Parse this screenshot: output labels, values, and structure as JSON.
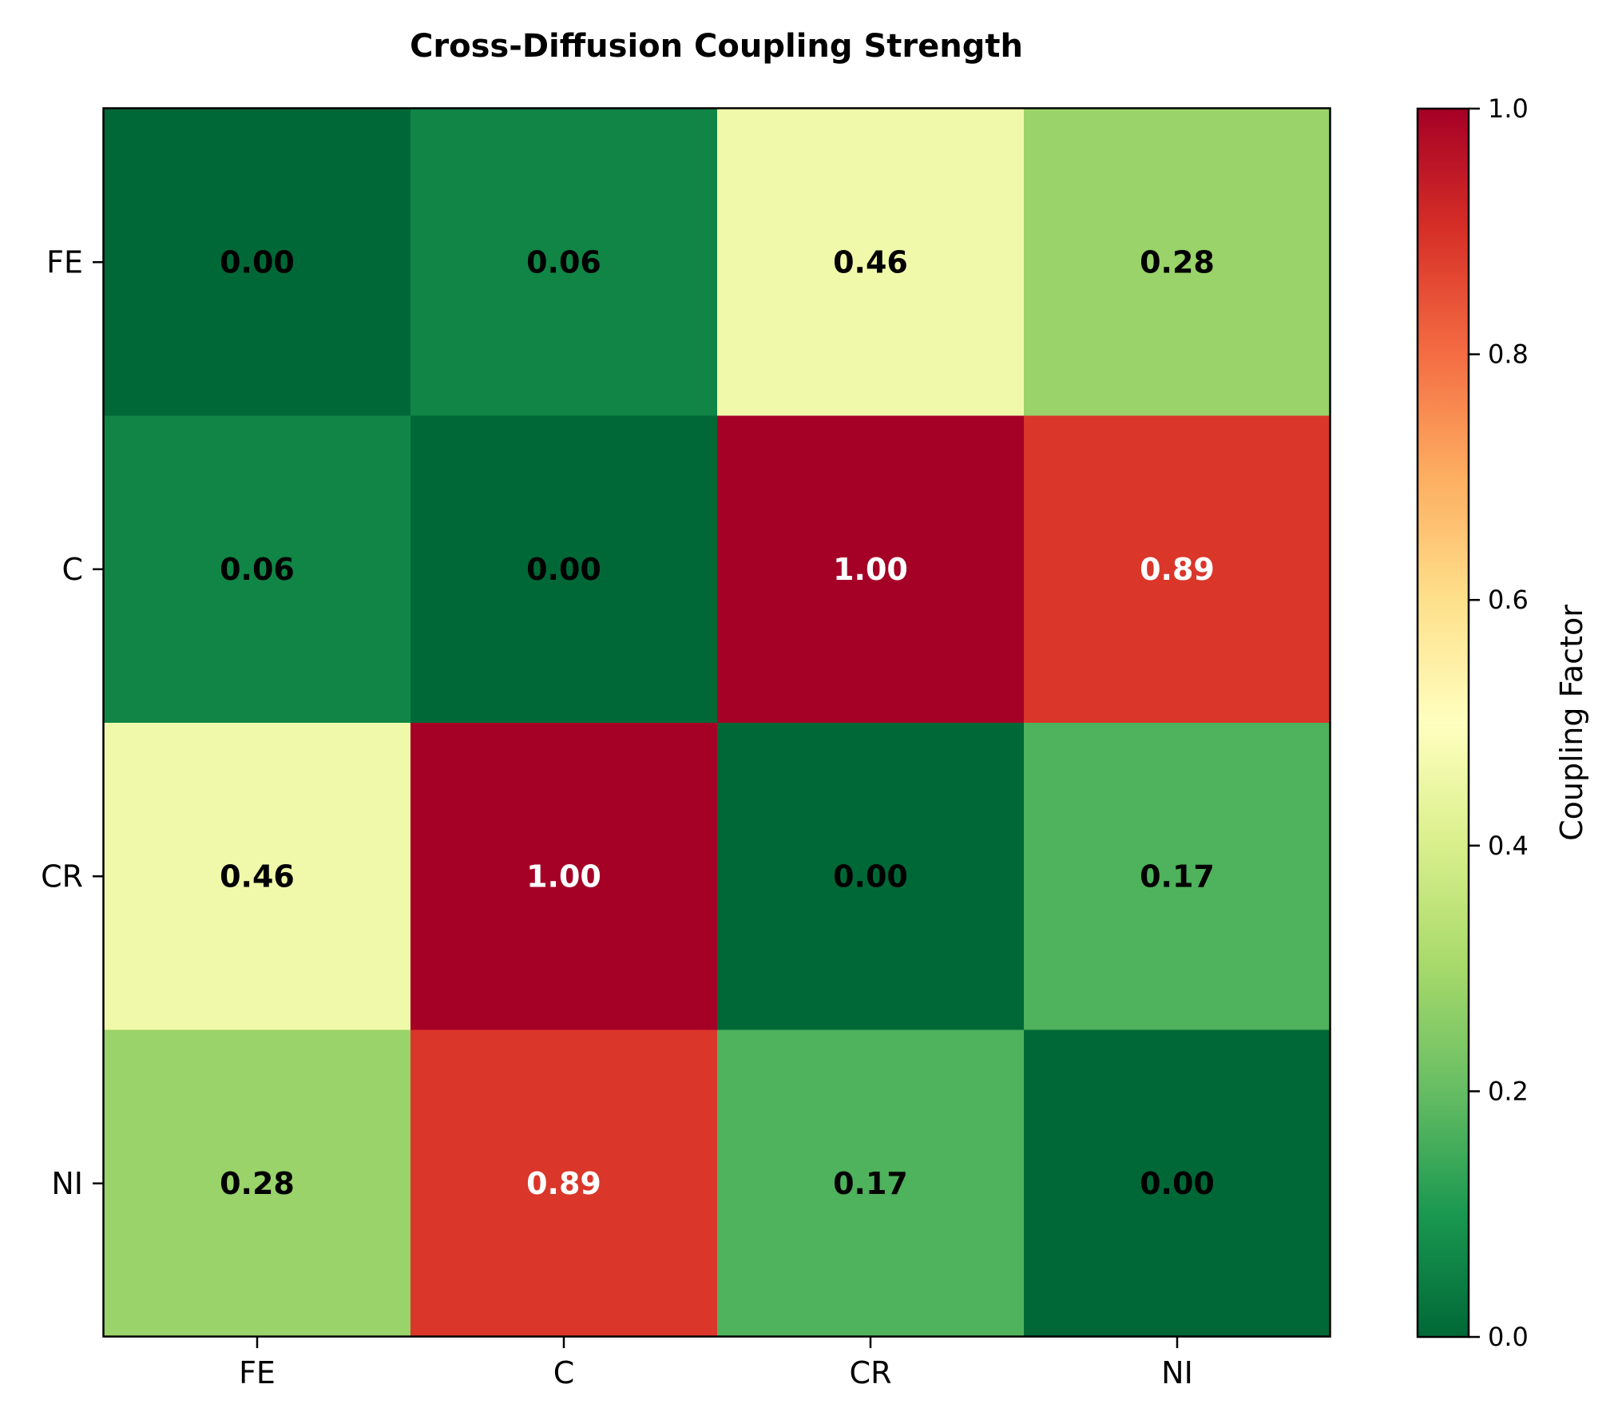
{
  "chart_data": {
    "type": "heatmap",
    "title": "Cross-Diffusion Coupling Strength",
    "x_categories": [
      "FE",
      "C",
      "CR",
      "NI"
    ],
    "y_categories": [
      "FE",
      "C",
      "CR",
      "NI"
    ],
    "values": [
      [
        0.0,
        0.06,
        0.46,
        0.28
      ],
      [
        0.06,
        0.0,
        1.0,
        0.89
      ],
      [
        0.46,
        1.0,
        0.0,
        0.17
      ],
      [
        0.28,
        0.89,
        0.17,
        0.0
      ]
    ],
    "value_format": "2 decimals",
    "colormap": "RdYlGn_r",
    "vmin": 0.0,
    "vmax": 1.0,
    "colorbar": {
      "label": "Coupling Factor",
      "ticks": [
        0.0,
        0.2,
        0.4,
        0.6,
        0.8,
        1.0
      ],
      "tick_labels": [
        "0.0",
        "0.2",
        "0.4",
        "0.6",
        "0.8",
        "1.0"
      ]
    },
    "text_colors": {
      "dark": "#000000",
      "light": "#ffffff"
    },
    "light_text_threshold": 0.7
  }
}
